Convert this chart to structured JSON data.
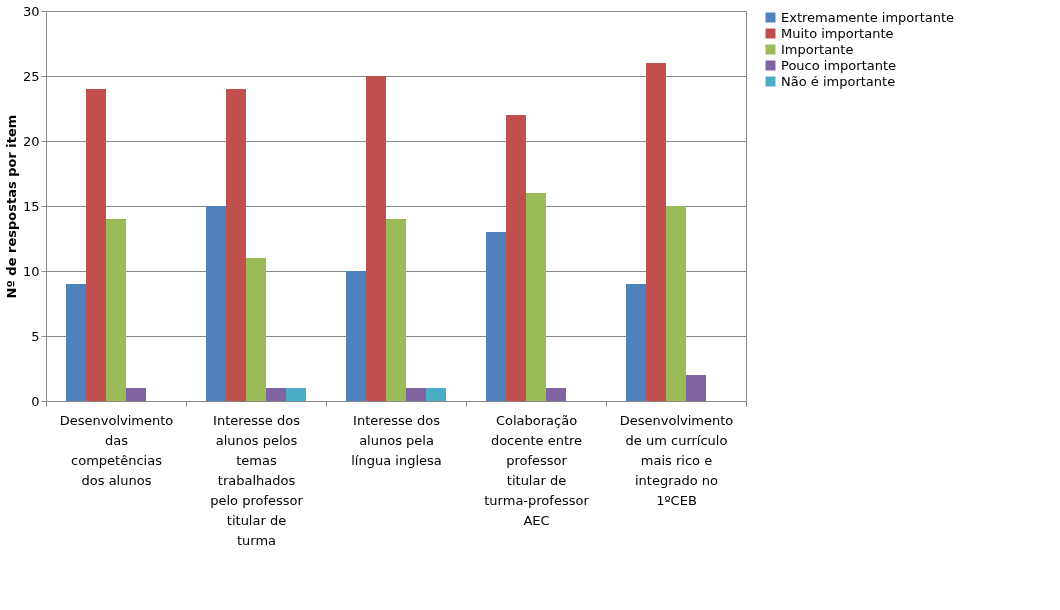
{
  "chart_data": {
    "type": "bar",
    "ylabel": "Nº de respostas por item",
    "categories": [
      "Desenvolvimento das competências dos alunos",
      "Interesse dos alunos pelos temas trabalhados pelo professor titular de turma",
      "Interesse dos alunos pela língua inglesa",
      "Colaboração docente entre professor titular de turma-professor AEC",
      "Desenvolvimento de um currículo mais rico e integrado no 1ºCEB"
    ],
    "series": [
      {
        "name": "Extremamente importante",
        "color": "#4f81bd",
        "values": [
          9,
          15,
          10,
          13,
          9
        ]
      },
      {
        "name": "Muito importante",
        "color": "#c0504d",
        "values": [
          24,
          24,
          25,
          22,
          26
        ]
      },
      {
        "name": "Importante",
        "color": "#9bbb59",
        "values": [
          14,
          11,
          14,
          16,
          15
        ]
      },
      {
        "name": "Pouco importante",
        "color": "#8064a2",
        "values": [
          1,
          1,
          1,
          1,
          2
        ]
      },
      {
        "name": "Não é importante",
        "color": "#4bacc6",
        "values": [
          0,
          1,
          1,
          0,
          0
        ]
      }
    ],
    "ylim": [
      0,
      30
    ],
    "yticks": [
      0,
      5,
      10,
      15,
      20,
      25,
      30
    ],
    "grid": "y",
    "legend": "right"
  }
}
